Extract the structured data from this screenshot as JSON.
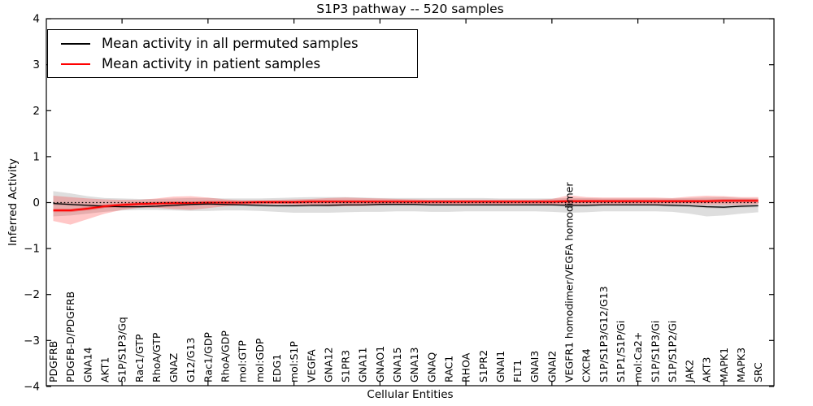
{
  "chart_data": {
    "type": "line",
    "title": "S1P3 pathway -- 520 samples",
    "xlabel": "Cellular Entities",
    "ylabel": "Inferred Activity",
    "ylim": [
      -4,
      4
    ],
    "yticks": [
      -4,
      -3,
      -2,
      -1,
      0,
      1,
      2,
      3,
      4
    ],
    "ytick_labels": [
      "−4",
      "−3",
      "−2",
      "−1",
      "0",
      "1",
      "2",
      "3",
      "4"
    ],
    "xtick_step": 5,
    "grid": false,
    "legend_position": "upper left",
    "categories": [
      "PDGFRB",
      "PDGFB-D/PDGFRB",
      "GNA14",
      "AKT1",
      "S1P/S1P3/Gq",
      "Rac1/GTP",
      "RhoA/GTP",
      "GNAZ",
      "G12/G13",
      "Rac1/GDP",
      "RhoA/GDP",
      "mol:GTP",
      "mol:GDP",
      "EDG1",
      "mol:S1P",
      "VEGFA",
      "GNA12",
      "S1PR3",
      "GNA11",
      "GNAO1",
      "GNA15",
      "GNA13",
      "GNAQ",
      "RAC1",
      "RHOA",
      "S1PR2",
      "GNAI1",
      "FLT1",
      "GNAI3",
      "GNAI2",
      "VEGFR1 homodimer/VEGFA homodimer",
      "CXCR4",
      "S1P/S1P3/G12/G13",
      "S1P1/S1P/Gi",
      "mol:Ca2+",
      "S1P/S1P3/Gi",
      "S1P/S1P2/Gi",
      "JAK2",
      "AKT3",
      "MAPK1",
      "MAPK3",
      "SRC"
    ],
    "series": [
      {
        "name": "Mean activity in all permuted samples",
        "color": "#000000",
        "width": 1.2,
        "values": [
          -0.02,
          -0.04,
          -0.06,
          -0.08,
          -0.09,
          -0.09,
          -0.08,
          -0.06,
          -0.04,
          -0.03,
          -0.04,
          -0.05,
          -0.06,
          -0.07,
          -0.07,
          -0.06,
          -0.06,
          -0.05,
          -0.05,
          -0.04,
          -0.04,
          -0.04,
          -0.05,
          -0.05,
          -0.05,
          -0.05,
          -0.05,
          -0.05,
          -0.05,
          -0.05,
          -0.06,
          -0.06,
          -0.05,
          -0.05,
          -0.05,
          -0.05,
          -0.06,
          -0.07,
          -0.09,
          -0.1,
          -0.08,
          -0.07
        ]
      },
      {
        "name": "Mean activity in patient samples",
        "color": "#ff0000",
        "width": 1.8,
        "values": [
          -0.17,
          -0.17,
          -0.13,
          -0.08,
          -0.05,
          -0.03,
          -0.02,
          -0.01,
          -0.01,
          0.0,
          0.0,
          0.0,
          0.01,
          0.01,
          0.01,
          0.02,
          0.02,
          0.02,
          0.02,
          0.02,
          0.02,
          0.02,
          0.02,
          0.02,
          0.02,
          0.02,
          0.02,
          0.02,
          0.02,
          0.02,
          0.03,
          0.03,
          0.03,
          0.03,
          0.03,
          0.03,
          0.03,
          0.03,
          0.03,
          0.04,
          0.04,
          0.04
        ]
      }
    ],
    "bands": [
      {
        "name": "permuted-range-band",
        "color": "#999999",
        "opacity": 0.32,
        "upper": [
          0.25,
          0.2,
          0.14,
          0.1,
          0.09,
          0.08,
          0.08,
          0.09,
          0.1,
          0.1,
          0.09,
          0.09,
          0.09,
          0.1,
          0.11,
          0.12,
          0.12,
          0.12,
          0.11,
          0.1,
          0.1,
          0.1,
          0.1,
          0.1,
          0.1,
          0.1,
          0.09,
          0.09,
          0.09,
          0.09,
          0.1,
          0.1,
          0.09,
          0.09,
          0.09,
          0.09,
          0.09,
          0.1,
          0.11,
          0.12,
          0.1,
          0.09
        ],
        "lower": [
          -0.3,
          -0.28,
          -0.24,
          -0.2,
          -0.17,
          -0.16,
          -0.16,
          -0.17,
          -0.18,
          -0.18,
          -0.17,
          -0.17,
          -0.18,
          -0.2,
          -0.22,
          -0.22,
          -0.22,
          -0.21,
          -0.2,
          -0.2,
          -0.19,
          -0.19,
          -0.2,
          -0.2,
          -0.19,
          -0.19,
          -0.19,
          -0.19,
          -0.19,
          -0.2,
          -0.22,
          -0.21,
          -0.19,
          -0.19,
          -0.19,
          -0.19,
          -0.2,
          -0.24,
          -0.3,
          -0.28,
          -0.24,
          -0.21
        ]
      },
      {
        "name": "permuted-inner-band",
        "color": "#555555",
        "opacity": 0.2,
        "around_series": 0,
        "halfwidth": 0.03
      },
      {
        "name": "patient-range-band",
        "color": "#ff0000",
        "opacity": 0.22,
        "upper": [
          0.15,
          0.12,
          0.09,
          0.07,
          0.06,
          0.06,
          0.09,
          0.13,
          0.14,
          0.11,
          0.07,
          0.05,
          0.05,
          0.06,
          0.07,
          0.08,
          0.1,
          0.11,
          0.1,
          0.09,
          0.08,
          0.07,
          0.06,
          0.06,
          0.06,
          0.06,
          0.06,
          0.06,
          0.06,
          0.08,
          0.16,
          0.12,
          0.11,
          0.11,
          0.11,
          0.11,
          0.1,
          0.13,
          0.15,
          0.14,
          0.12,
          0.12
        ],
        "lower": [
          -0.4,
          -0.48,
          -0.36,
          -0.24,
          -0.16,
          -0.11,
          -0.11,
          -0.14,
          -0.16,
          -0.12,
          -0.08,
          -0.05,
          -0.04,
          -0.04,
          -0.05,
          -0.06,
          -0.08,
          -0.08,
          -0.07,
          -0.06,
          -0.05,
          -0.04,
          -0.04,
          -0.04,
          -0.04,
          -0.04,
          -0.04,
          -0.04,
          -0.04,
          -0.05,
          -0.07,
          -0.05,
          -0.05,
          -0.05,
          -0.05,
          -0.05,
          -0.04,
          -0.04,
          -0.05,
          -0.05,
          -0.05,
          -0.04
        ]
      },
      {
        "name": "patient-inner-band",
        "color": "#ff0000",
        "opacity": 0.38,
        "around_series": 1,
        "halfwidth": 0.035
      }
    ],
    "zero_line": {
      "value": 0,
      "color": "#000000",
      "style": "dotted"
    }
  },
  "legend": {
    "entries": [
      {
        "label": "Mean activity in all permuted samples",
        "color": "#000000"
      },
      {
        "label": "Mean activity in patient samples",
        "color": "#ff0000"
      }
    ]
  }
}
